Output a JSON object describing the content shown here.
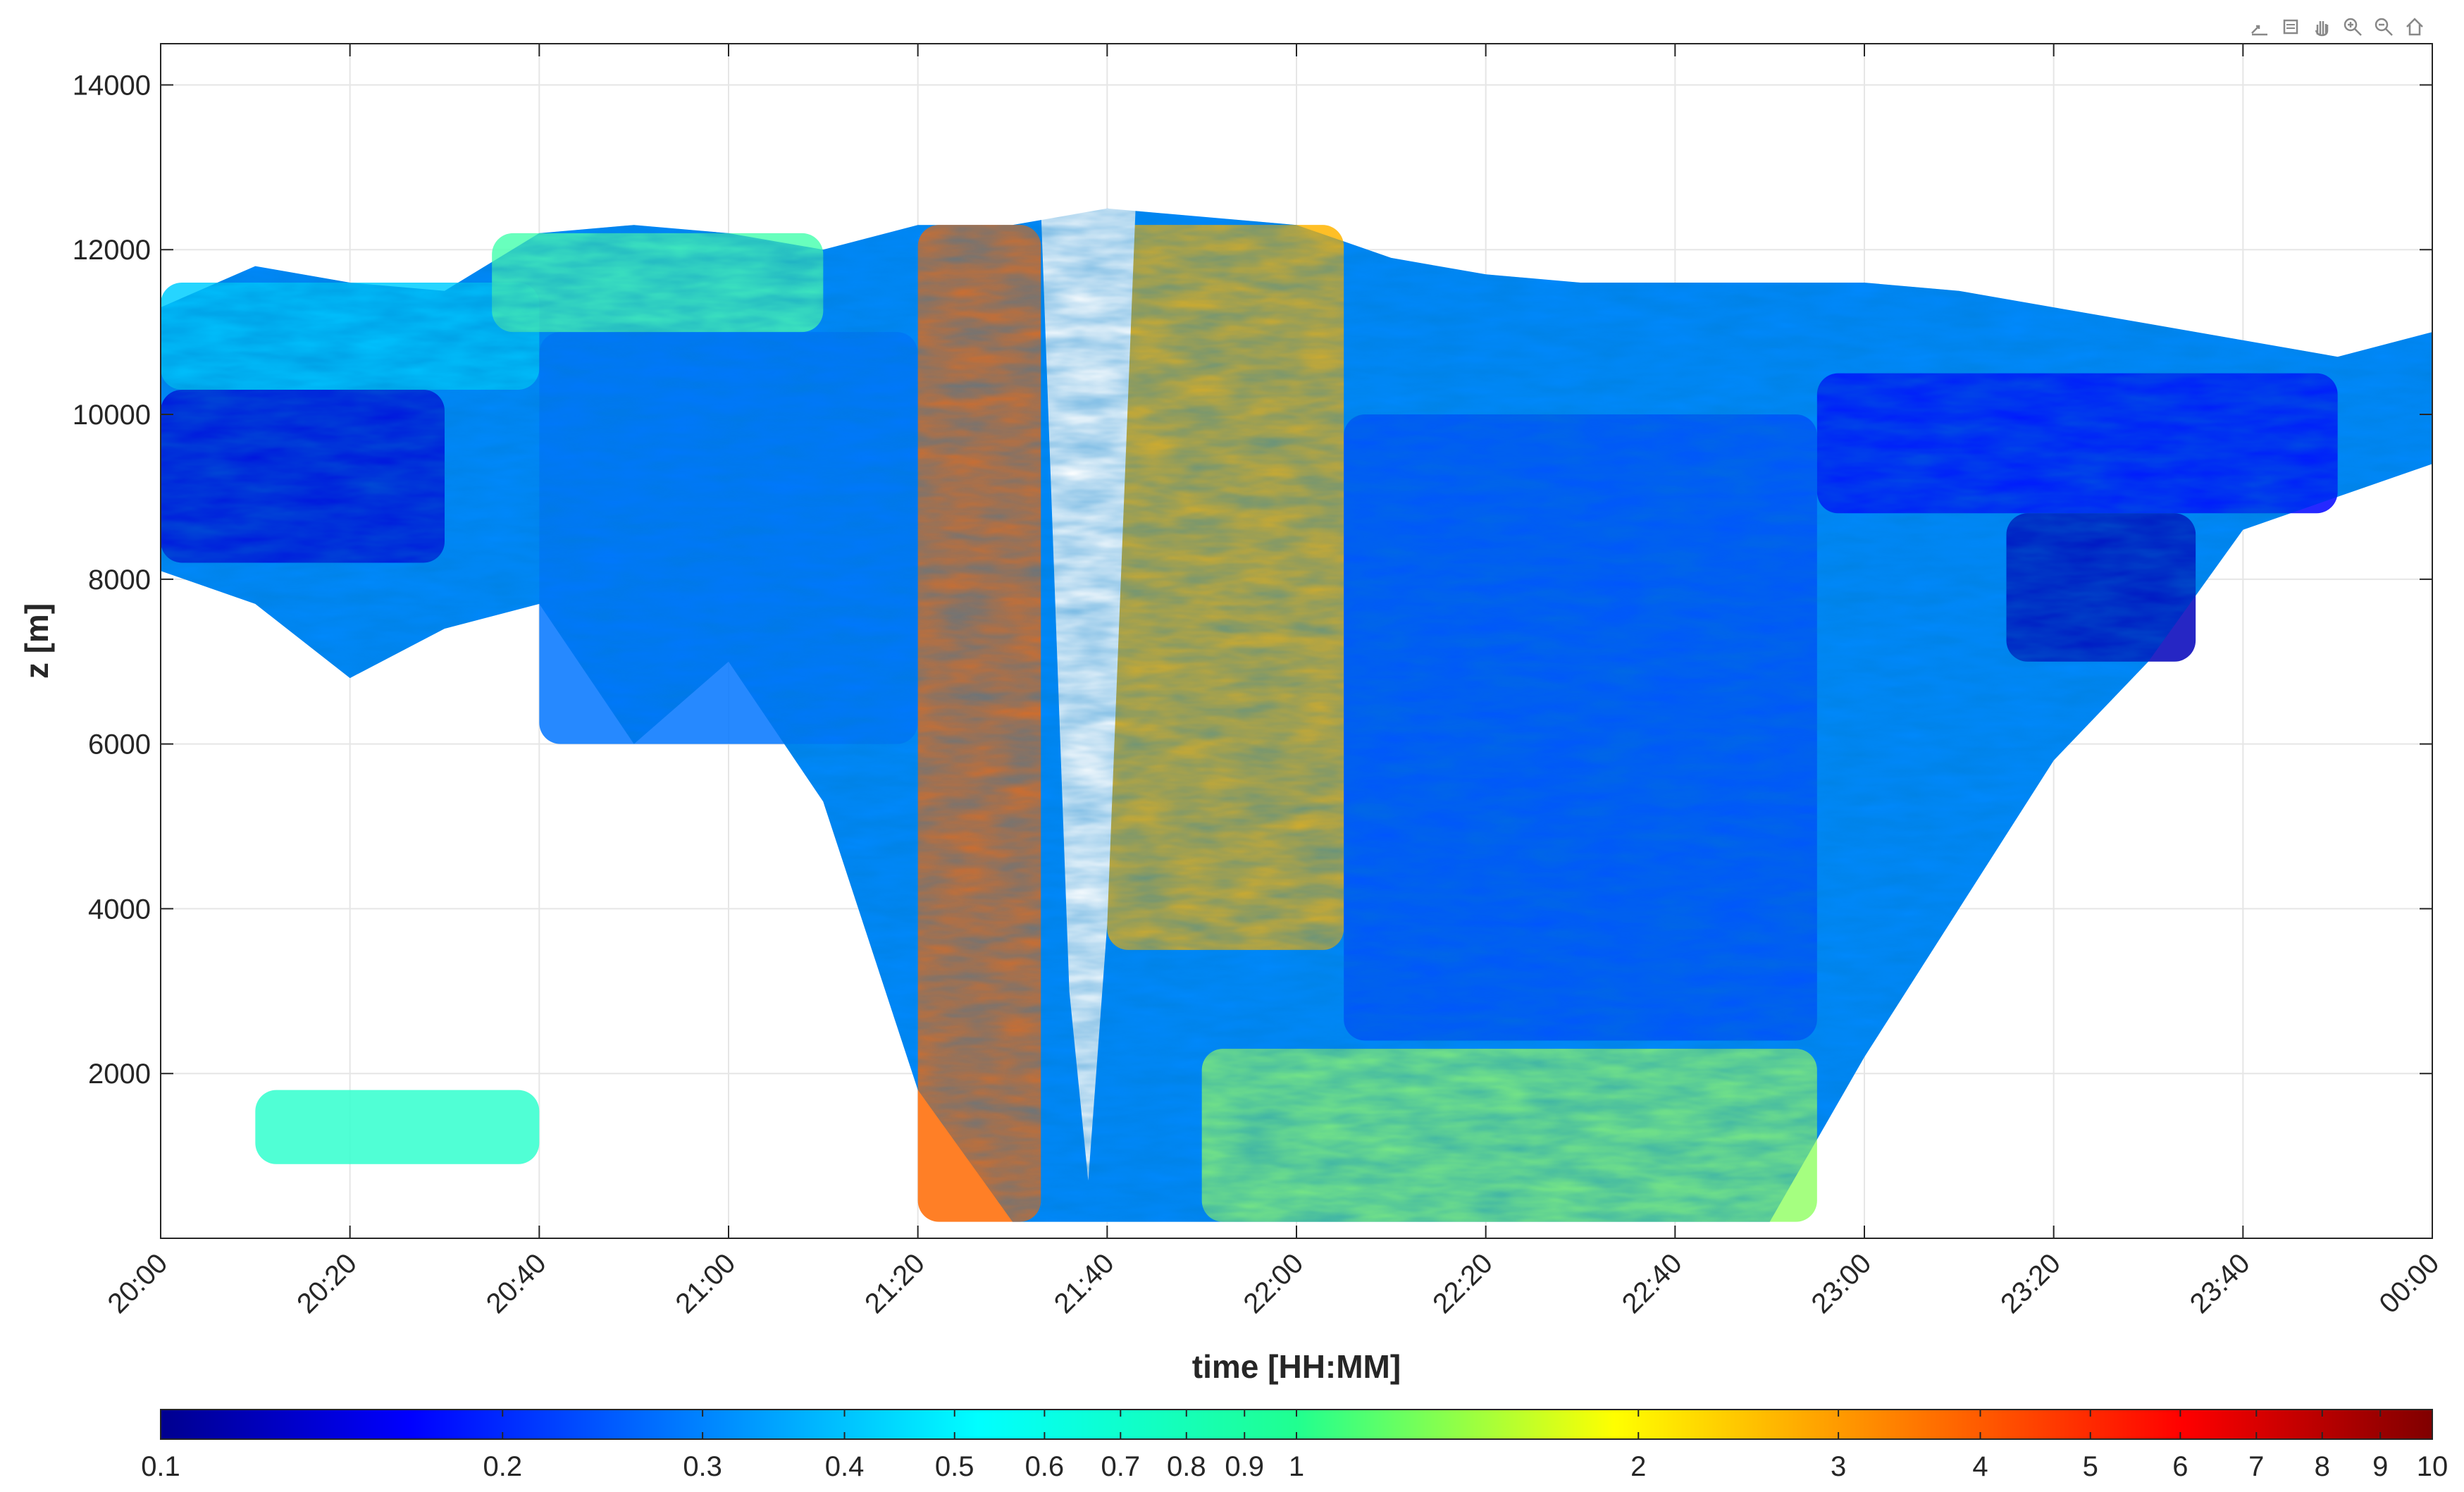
{
  "chart_data": {
    "type": "heatmap",
    "title": "",
    "xlabel": "time [HH:MM]",
    "ylabel": "z [m]",
    "x_ticks": [
      "20:00",
      "20:20",
      "20:40",
      "21:00",
      "21:20",
      "21:40",
      "22:00",
      "22:20",
      "22:40",
      "23:00",
      "23:20",
      "23:40",
      "00:00"
    ],
    "x_range_minutes": [
      0,
      240
    ],
    "y_ticks": [
      2000,
      4000,
      6000,
      8000,
      10000,
      12000,
      14000
    ],
    "ylim": [
      0,
      14500
    ],
    "grid": true,
    "colorbar": {
      "scale": "log",
      "range": [
        0.1,
        10
      ],
      "ticks": [
        0.1,
        0.2,
        0.3,
        0.4,
        0.5,
        0.6,
        0.7,
        0.8,
        0.9,
        1,
        2,
        3,
        4,
        5,
        6,
        7,
        8,
        9,
        10
      ],
      "tick_labels": [
        "0.1",
        "0.2",
        "0.3",
        "0.4",
        "0.5",
        "0.6",
        "0.7",
        "0.8",
        "0.9",
        "1",
        "2",
        "3",
        "4",
        "5",
        "6",
        "7",
        "8",
        "9",
        "10"
      ],
      "colormap": "jet"
    },
    "cloud_top_profile": {
      "time_min": [
        0,
        10,
        20,
        30,
        40,
        50,
        60,
        70,
        80,
        90,
        100,
        110,
        120,
        130,
        140,
        150,
        160,
        170,
        180,
        190,
        200,
        210,
        220,
        230,
        240
      ],
      "z_top_m": [
        11300,
        11800,
        11600,
        11500,
        12200,
        12300,
        12200,
        12000,
        12300,
        12300,
        12500,
        12400,
        12300,
        11900,
        11700,
        11600,
        11600,
        11600,
        11600,
        11500,
        11300,
        11100,
        10900,
        10700,
        11000
      ],
      "z_base_m": [
        8100,
        7700,
        6800,
        7400,
        7700,
        6000,
        7000,
        5300,
        1800,
        200,
        200,
        200,
        200,
        200,
        200,
        200,
        200,
        200,
        2200,
        4000,
        5800,
        7000,
        8600,
        9000,
        9400
      ]
    },
    "value_regions": [
      {
        "t0": 0,
        "t1": 30,
        "z0": 8200,
        "z1": 10300,
        "value": 0.15
      },
      {
        "t0": 0,
        "t1": 40,
        "z0": 10300,
        "z1": 11600,
        "value": 0.45
      },
      {
        "t0": 40,
        "t1": 80,
        "z0": 6000,
        "z1": 11000,
        "value": 0.3
      },
      {
        "t0": 35,
        "t1": 70,
        "z0": 11000,
        "z1": 12200,
        "value": 0.8
      },
      {
        "t0": 80,
        "t1": 93,
        "z0": 200,
        "z1": 12300,
        "value": 3.5
      },
      {
        "t0": 100,
        "t1": 125,
        "z0": 3500,
        "z1": 12300,
        "value": 2.5
      },
      {
        "t0": 125,
        "t1": 175,
        "z0": 2400,
        "z1": 10000,
        "value": 0.25
      },
      {
        "t0": 110,
        "t1": 175,
        "z0": 200,
        "z1": 2300,
        "value": 1.1
      },
      {
        "t0": 175,
        "t1": 230,
        "z0": 8800,
        "z1": 10500,
        "value": 0.18
      },
      {
        "t0": 195,
        "t1": 215,
        "z0": 7000,
        "z1": 8800,
        "value": 0.13
      },
      {
        "t0": 10,
        "t1": 40,
        "z0": 900,
        "z1": 1800,
        "value": 0.7
      }
    ]
  }
}
